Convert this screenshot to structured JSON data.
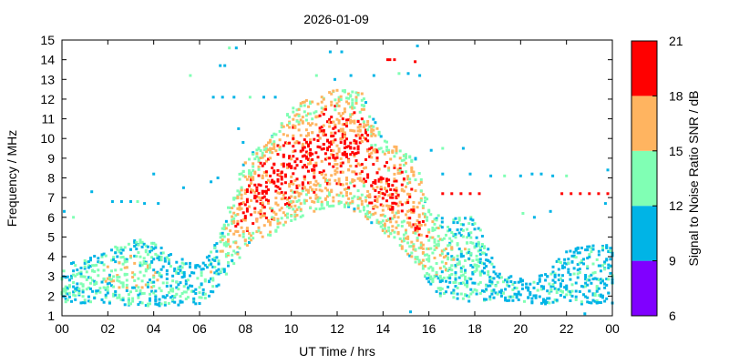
{
  "chart_data": {
    "type": "scatter",
    "title": "2026-01-09",
    "xlabel": "UT Time / hrs",
    "ylabel": "Frequency / MHz",
    "xlim": [
      0,
      24
    ],
    "ylim": [
      1,
      15
    ],
    "xticks": [
      "00",
      "02",
      "04",
      "06",
      "08",
      "10",
      "12",
      "14",
      "16",
      "18",
      "20",
      "22",
      "00"
    ],
    "yticks": [
      "1",
      "2",
      "3",
      "4",
      "5",
      "6",
      "7",
      "8",
      "9",
      "10",
      "11",
      "12",
      "13",
      "14",
      "15"
    ],
    "colorbar": {
      "label": "Signal to Noise Ratio SNR / dB",
      "range": [
        6,
        21
      ],
      "ticks": [
        "6",
        "9",
        "12",
        "15",
        "18",
        "21"
      ],
      "bands": [
        {
          "from": 6,
          "to": 9,
          "color": "#8000ff"
        },
        {
          "from": 9,
          "to": 12,
          "color": "#00b4e6"
        },
        {
          "from": 12,
          "to": 15,
          "color": "#80ffb4"
        },
        {
          "from": 15,
          "to": 18,
          "color": "#ffb460"
        },
        {
          "from": 18,
          "to": 21,
          "color": "#ff0000"
        }
      ]
    },
    "envelope": {
      "hours": [
        0,
        1,
        2,
        3,
        4,
        5,
        6,
        6.5,
        7,
        7.5,
        8,
        9,
        10,
        11,
        12,
        13,
        14,
        15,
        15.5,
        16,
        16.5,
        17,
        18,
        18.5,
        19,
        20,
        21,
        22,
        23,
        24
      ],
      "low_mhz": [
        1.5,
        1.6,
        1.6,
        1.5,
        1.5,
        1.5,
        1.6,
        2.0,
        2.8,
        3.6,
        4.3,
        5.0,
        5.8,
        6.3,
        6.6,
        6.2,
        5.2,
        4.2,
        3.5,
        2.6,
        2.0,
        1.8,
        1.7,
        1.7,
        1.7,
        1.7,
        1.6,
        1.6,
        1.6,
        1.6
      ],
      "high_mhz": [
        3.5,
        3.9,
        4.3,
        4.9,
        4.8,
        4.0,
        3.6,
        4.3,
        5.6,
        7.4,
        9.0,
        10.0,
        11.5,
        12.2,
        12.8,
        12.5,
        10.0,
        9.4,
        9.0,
        6.6,
        6.2,
        6.0,
        6.0,
        4.8,
        3.2,
        2.9,
        3.1,
        4.3,
        4.6,
        4.6
      ],
      "peak_snr_db": [
        13,
        13,
        14,
        15,
        14,
        12,
        12,
        13,
        15,
        17,
        19,
        20,
        20,
        20,
        20,
        20,
        20,
        19,
        18,
        16,
        15,
        14,
        13,
        12,
        11,
        11,
        11,
        12,
        12,
        12
      ]
    },
    "scattered_spots": [
      {
        "hour": 0.5,
        "mhz": 6.0
      },
      {
        "hour": 1.3,
        "mhz": 7.3
      },
      {
        "hour": 2.2,
        "mhz": 6.8
      },
      {
        "hour": 2.6,
        "mhz": 6.8
      },
      {
        "hour": 3.0,
        "mhz": 6.8
      },
      {
        "hour": 3.3,
        "mhz": 6.8
      },
      {
        "hour": 3.6,
        "mhz": 6.7
      },
      {
        "hour": 4.2,
        "mhz": 6.7
      },
      {
        "hour": 4.0,
        "mhz": 8.2
      },
      {
        "hour": 5.3,
        "mhz": 7.5
      },
      {
        "hour": 5.6,
        "mhz": 13.2
      },
      {
        "hour": 6.5,
        "mhz": 7.8
      },
      {
        "hour": 6.8,
        "mhz": 8.0
      },
      {
        "hour": 6.9,
        "mhz": 13.7
      },
      {
        "hour": 7.1,
        "mhz": 13.7
      },
      {
        "hour": 7.3,
        "mhz": 14.6
      },
      {
        "hour": 7.6,
        "mhz": 14.6
      },
      {
        "hour": 6.6,
        "mhz": 12.1
      },
      {
        "hour": 7.0,
        "mhz": 12.1
      },
      {
        "hour": 7.5,
        "mhz": 12.1
      },
      {
        "hour": 8.2,
        "mhz": 12.1
      },
      {
        "hour": 8.8,
        "mhz": 12.1
      },
      {
        "hour": 9.3,
        "mhz": 12.1
      },
      {
        "hour": 7.7,
        "mhz": 10.5
      },
      {
        "hour": 7.9,
        "mhz": 9.8
      },
      {
        "hour": 11.1,
        "mhz": 13.2
      },
      {
        "hour": 11.7,
        "mhz": 14.4
      },
      {
        "hour": 12.2,
        "mhz": 14.4
      },
      {
        "hour": 11.9,
        "mhz": 13.0
      },
      {
        "hour": 12.6,
        "mhz": 13.2
      },
      {
        "hour": 14.7,
        "mhz": 13.3
      },
      {
        "hour": 15.1,
        "mhz": 13.3
      },
      {
        "hour": 15.5,
        "mhz": 14.7
      },
      {
        "hour": 15.4,
        "mhz": 13.9
      },
      {
        "hour": 15.6,
        "mhz": 13.2
      },
      {
        "hour": 14.2,
        "mhz": 14.0
      },
      {
        "hour": 14.5,
        "mhz": 14.0
      },
      {
        "hour": 14.3,
        "mhz": 14.0
      },
      {
        "hour": 13.6,
        "mhz": 13.2
      },
      {
        "hour": 16.1,
        "mhz": 9.4
      },
      {
        "hour": 16.6,
        "mhz": 9.5
      },
      {
        "hour": 17.5,
        "mhz": 9.5
      },
      {
        "hour": 16.6,
        "mhz": 8.2
      },
      {
        "hour": 17.8,
        "mhz": 8.2
      },
      {
        "hour": 18.7,
        "mhz": 8.1
      },
      {
        "hour": 19.3,
        "mhz": 8.1
      },
      {
        "hour": 20.0,
        "mhz": 8.1
      },
      {
        "hour": 20.5,
        "mhz": 8.2
      },
      {
        "hour": 20.9,
        "mhz": 8.2
      },
      {
        "hour": 21.4,
        "mhz": 8.1
      },
      {
        "hour": 22.0,
        "mhz": 8.1
      },
      {
        "hour": 23.8,
        "mhz": 8.4
      },
      {
        "hour": 16.6,
        "mhz": 7.2
      },
      {
        "hour": 17.0,
        "mhz": 7.2
      },
      {
        "hour": 17.4,
        "mhz": 7.2
      },
      {
        "hour": 17.8,
        "mhz": 7.2
      },
      {
        "hour": 18.2,
        "mhz": 7.2
      },
      {
        "hour": 21.8,
        "mhz": 7.2
      },
      {
        "hour": 22.2,
        "mhz": 7.2
      },
      {
        "hour": 22.6,
        "mhz": 7.2
      },
      {
        "hour": 23.0,
        "mhz": 7.2
      },
      {
        "hour": 23.4,
        "mhz": 7.2
      },
      {
        "hour": 23.8,
        "mhz": 7.2
      },
      {
        "hour": 23.7,
        "mhz": 6.7
      },
      {
        "hour": 21.3,
        "mhz": 6.3
      },
      {
        "hour": 20.1,
        "mhz": 6.2
      },
      {
        "hour": 20.6,
        "mhz": 6.0
      },
      {
        "hour": 0.1,
        "mhz": 6.3
      },
      {
        "hour": 15.2,
        "mhz": 1.2
      },
      {
        "hour": 22.8,
        "mhz": 1.1
      }
    ],
    "grid": false,
    "legend": "colorbar-right"
  }
}
